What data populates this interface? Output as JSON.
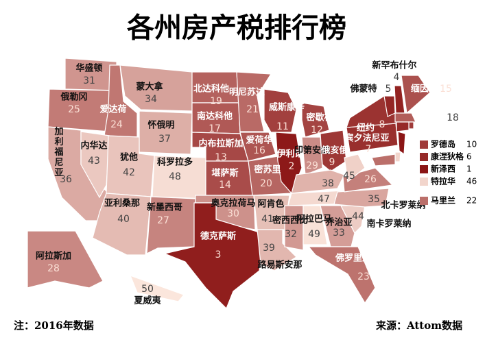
{
  "header": {
    "title": "各州房产税排行榜"
  },
  "color_scale": {
    "rank_first_color": "#8b1515",
    "rank_last_color": "#fbe6dc"
  },
  "states": [
    {
      "name": "华盛顿",
      "rank": 31
    },
    {
      "name": "俄勒冈",
      "rank": 25
    },
    {
      "name": "加利福尼亚",
      "rank": 36
    },
    {
      "name": "爱达荷",
      "rank": 24
    },
    {
      "name": "内华达",
      "rank": 43
    },
    {
      "name": "蒙大拿",
      "rank": 34
    },
    {
      "name": "怀俄明",
      "rank": 37
    },
    {
      "name": "犹他",
      "rank": 42
    },
    {
      "name": "科罗拉多",
      "rank": 48
    },
    {
      "name": "亚利桑那",
      "rank": 40
    },
    {
      "name": "新墨西哥",
      "rank": 27
    },
    {
      "name": "北达科他",
      "rank": 19
    },
    {
      "name": "南达科他",
      "rank": 17
    },
    {
      "name": "内布拉斯加",
      "rank": 13
    },
    {
      "name": "堪萨斯",
      "rank": 14
    },
    {
      "name": "奥克拉荷马",
      "rank": 30
    },
    {
      "name": "德克萨斯",
      "rank": 3
    },
    {
      "name": "明尼苏达",
      "rank": 21
    },
    {
      "name": "爱荷华",
      "rank": 16
    },
    {
      "name": "密苏里",
      "rank": 20
    },
    {
      "name": "阿肯色",
      "rank": 41
    },
    {
      "name": "路易斯安那",
      "rank": 39
    },
    {
      "name": "威斯康辛",
      "rank": 11
    },
    {
      "name": "伊利诺",
      "rank": 2
    },
    {
      "name": "密歇根",
      "rank": 12
    },
    {
      "name": "印第安纳",
      "rank": 29
    },
    {
      "name": "俄亥俄",
      "rank": 9
    },
    {
      "name": null,
      "rank": 38
    },
    {
      "name": null,
      "rank": 47
    },
    {
      "name": "密西西比",
      "rank": 32
    },
    {
      "name": "阿拉巴马",
      "rank": 49
    },
    {
      "name": "乔治亚",
      "rank": 33
    },
    {
      "name": "佛罗里达",
      "rank": 23
    },
    {
      "name": "南卡罗莱纳",
      "rank": 44
    },
    {
      "name": "北卡罗莱纳",
      "rank": 35
    },
    {
      "name": null,
      "rank": 26
    },
    {
      "name": null,
      "rank": 45
    },
    {
      "name": "宾夕法尼亚",
      "rank": 7
    },
    {
      "name": "纽约",
      "rank": 8
    },
    {
      "name": "佛蒙特",
      "rank": 5
    },
    {
      "name": "新罕布什尔",
      "rank": 4
    },
    {
      "name": "缅因",
      "rank": 15
    },
    {
      "name": null,
      "rank": 18
    },
    {
      "name": "罗德岛",
      "rank": 10
    },
    {
      "name": "康涅狄格",
      "rank": 6
    },
    {
      "name": "新泽西",
      "rank": 1
    },
    {
      "name": "特拉华",
      "rank": 46
    },
    {
      "name": "马里兰",
      "rank": 22
    },
    {
      "name": "阿拉斯加",
      "rank": 28
    },
    {
      "name": "夏威夷",
      "rank": 50
    }
  ],
  "footer": {
    "note": "注：2016年数据",
    "source": "来源：Attom数据"
  }
}
